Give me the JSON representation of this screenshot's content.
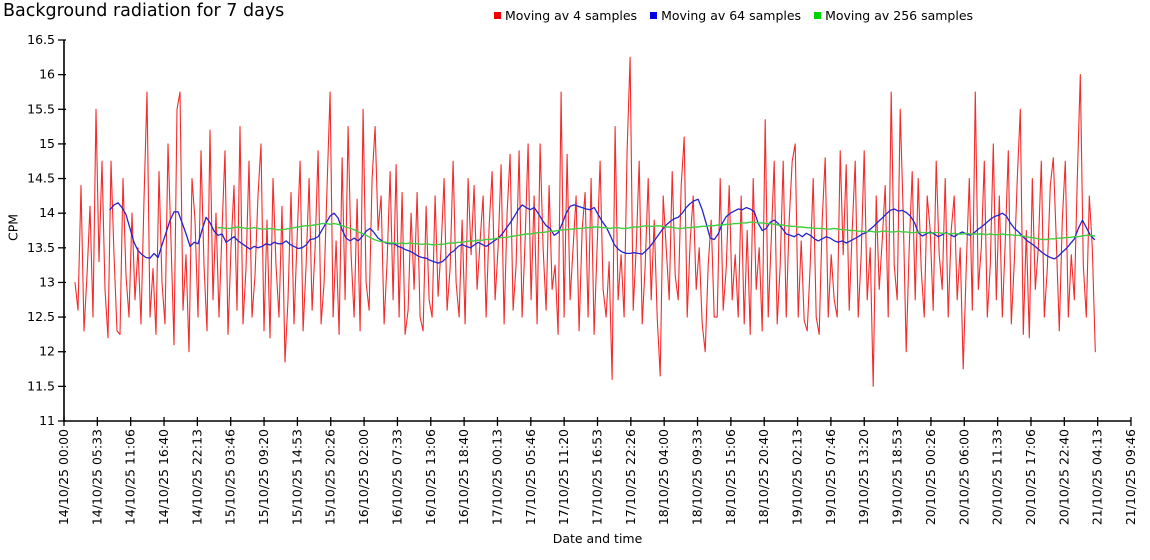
{
  "title": "Background radiation for 7 days",
  "chart_data": {
    "type": "line",
    "title": "Background radiation for 7 days",
    "xlabel": "Date and time",
    "ylabel": "CPM",
    "ylim": [
      11,
      16.5
    ],
    "y_tick_labels": [
      "11",
      "11.5",
      "12",
      "12.5",
      "13",
      "13.5",
      "14",
      "14.5",
      "15",
      "15.5",
      "16",
      "16.5"
    ],
    "x_hours_max": 177.78,
    "x_tick_step_hours": 5.5556,
    "x_tick_labels": [
      "14/10/25 00:00",
      "14/10/25 05:33",
      "14/10/25 11:06",
      "14/10/25 16:40",
      "14/10/25 22:13",
      "15/10/25 03:46",
      "15/10/25 09:20",
      "15/10/25 14:53",
      "15/10/25 20:26",
      "16/10/25 02:00",
      "16/10/25 07:33",
      "16/10/25 13:06",
      "16/10/25 18:40",
      "17/10/25 00:13",
      "17/10/25 05:46",
      "17/10/25 11:20",
      "17/10/25 16:53",
      "17/10/25 22:26",
      "18/10/25 04:00",
      "18/10/25 09:33",
      "18/10/25 15:06",
      "18/10/25 20:40",
      "19/10/25 02:13",
      "19/10/25 07:46",
      "19/10/25 13:20",
      "19/10/25 18:53",
      "20/10/25 00:26",
      "20/10/25 06:00",
      "20/10/25 11:33",
      "20/10/25 17:06",
      "20/10/25 22:40",
      "21/10/25 04:13",
      "21/10/25 09:46"
    ],
    "grid": false,
    "legend_position": "top-center",
    "series": [
      {
        "name": "Moving av 4 samples",
        "line_color": "#f52a2a",
        "marker_color": "#f40000",
        "line_width": 1.1,
        "x_start_hours": 1.83,
        "x_step_hours": 0.5,
        "values": [
          13.0,
          12.6,
          14.4,
          12.3,
          13.1,
          14.1,
          12.5,
          15.5,
          13.3,
          14.75,
          12.9,
          12.2,
          14.75,
          13.4,
          12.3,
          12.25,
          14.5,
          13.1,
          12.5,
          14.0,
          12.75,
          13.5,
          12.4,
          14.2,
          15.75,
          12.5,
          13.2,
          12.25,
          14.6,
          13.0,
          12.4,
          15.0,
          13.6,
          12.1,
          15.5,
          15.75,
          12.6,
          13.4,
          12.0,
          14.5,
          13.9,
          12.5,
          14.9,
          13.25,
          12.3,
          15.2,
          12.75,
          14.0,
          12.5,
          13.75,
          14.9,
          12.25,
          13.5,
          14.4,
          12.6,
          15.25,
          12.4,
          13.2,
          14.75,
          12.5,
          13.1,
          14.25,
          15.0,
          12.3,
          13.9,
          12.2,
          14.5,
          13.25,
          12.5,
          14.1,
          11.85,
          12.75,
          14.3,
          12.4,
          13.6,
          14.75,
          12.3,
          13.25,
          14.5,
          12.6,
          13.5,
          14.9,
          12.4,
          13.0,
          14.4,
          15.75,
          12.5,
          13.6,
          12.25,
          14.8,
          12.75,
          15.25,
          13.4,
          12.5,
          14.2,
          12.3,
          15.5,
          13.0,
          12.6,
          14.5,
          15.25,
          13.75,
          14.25,
          12.4,
          13.3,
          14.6,
          12.75,
          14.7,
          12.5,
          14.3,
          12.25,
          12.6,
          14.0,
          12.9,
          14.3,
          12.5,
          12.3,
          14.1,
          12.75,
          12.5,
          14.25,
          12.8,
          13.5,
          14.5,
          12.6,
          13.2,
          14.75,
          13.0,
          12.5,
          13.9,
          12.4,
          14.5,
          13.4,
          14.4,
          12.9,
          13.6,
          14.25,
          12.5,
          13.8,
          14.6,
          12.75,
          13.5,
          14.7,
          12.4,
          14.0,
          14.85,
          12.6,
          13.25,
          14.9,
          12.5,
          13.6,
          15.0,
          12.75,
          14.25,
          12.4,
          15.0,
          13.5,
          12.6,
          14.4,
          12.9,
          13.25,
          12.25,
          15.75,
          12.5,
          14.85,
          12.75,
          13.5,
          14.25,
          12.3,
          13.75,
          14.3,
          12.5,
          14.5,
          12.25,
          13.5,
          14.75,
          12.9,
          12.5,
          13.3,
          11.6,
          15.25,
          12.75,
          13.4,
          12.5,
          14.9,
          16.25,
          12.6,
          13.5,
          14.75,
          12.4,
          13.25,
          14.5,
          12.75,
          13.9,
          12.5,
          11.65,
          14.25,
          13.5,
          12.75,
          14.6,
          13.1,
          12.75,
          14.4,
          15.1,
          12.5,
          13.6,
          14.25,
          12.9,
          13.5,
          12.4,
          12.0,
          13.25,
          13.9,
          12.5,
          12.5,
          14.5,
          12.6,
          13.2,
          14.4,
          12.75,
          13.4,
          12.5,
          14.25,
          12.4,
          13.75,
          12.25,
          14.5,
          12.9,
          13.5,
          12.3,
          15.35,
          12.5,
          13.6,
          14.75,
          12.4,
          13.25,
          14.75,
          12.5,
          13.9,
          14.75,
          15.0,
          12.5,
          13.6,
          12.45,
          12.3,
          13.25,
          14.5,
          12.5,
          12.25,
          13.9,
          14.8,
          12.5,
          13.4,
          12.75,
          12.5,
          14.9,
          13.4,
          14.7,
          12.6,
          13.75,
          14.75,
          12.5,
          13.4,
          14.9,
          12.75,
          13.5,
          11.5,
          14.25,
          12.9,
          13.6,
          14.4,
          12.5,
          15.75,
          13.25,
          12.75,
          15.5,
          14.0,
          12.0,
          13.5,
          14.6,
          12.75,
          14.5,
          13.2,
          12.5,
          14.25,
          13.75,
          12.6,
          14.75,
          13.4,
          12.9,
          14.5,
          12.5,
          13.75,
          14.25,
          12.75,
          13.5,
          11.75,
          13.25,
          14.5,
          12.6,
          15.75,
          12.9,
          13.5,
          14.75,
          12.5,
          13.25,
          15.0,
          12.75,
          14.25,
          12.5,
          13.6,
          14.9,
          12.4,
          13.3,
          14.5,
          15.5,
          12.25,
          13.75,
          12.2,
          14.5,
          12.9,
          13.5,
          14.75,
          12.5,
          13.2,
          14.4,
          14.8,
          13.6,
          12.3,
          13.9,
          14.75,
          12.5,
          13.4,
          12.75,
          14.5,
          16.0,
          13.25,
          12.5,
          14.25,
          13.5,
          12.0
        ]
      },
      {
        "name": "Moving av 64 samples",
        "line_color": "#2424cf",
        "marker_color": "#0000e8",
        "line_width": 1.3,
        "x_start_hours": 7.67,
        "x_step_hours": 0.6667,
        "values": [
          14.05,
          14.12,
          14.15,
          14.08,
          13.98,
          13.78,
          13.58,
          13.46,
          13.4,
          13.36,
          13.35,
          13.42,
          13.36,
          13.55,
          13.72,
          13.9,
          14.02,
          14.02,
          13.86,
          13.7,
          13.52,
          13.58,
          13.56,
          13.76,
          13.94,
          13.86,
          13.74,
          13.68,
          13.7,
          13.58,
          13.62,
          13.66,
          13.6,
          13.56,
          13.52,
          13.48,
          13.52,
          13.5,
          13.52,
          13.56,
          13.54,
          13.58,
          13.56,
          13.56,
          13.6,
          13.55,
          13.52,
          13.49,
          13.5,
          13.54,
          13.62,
          13.63,
          13.66,
          13.76,
          13.86,
          13.96,
          14.0,
          13.93,
          13.76,
          13.64,
          13.6,
          13.64,
          13.6,
          13.66,
          13.74,
          13.78,
          13.72,
          13.64,
          13.6,
          13.57,
          13.56,
          13.56,
          13.52,
          13.5,
          13.47,
          13.45,
          13.42,
          13.38,
          13.36,
          13.35,
          13.32,
          13.3,
          13.28,
          13.3,
          13.35,
          13.42,
          13.46,
          13.52,
          13.55,
          13.52,
          13.5,
          13.54,
          13.58,
          13.55,
          13.52,
          13.56,
          13.6,
          13.64,
          13.7,
          13.78,
          13.86,
          13.95,
          14.05,
          14.12,
          14.08,
          14.05,
          14.08,
          14.0,
          13.9,
          13.82,
          13.78,
          13.68,
          13.72,
          13.85,
          14.0,
          14.1,
          14.12,
          14.1,
          14.08,
          14.06,
          14.05,
          14.08,
          13.98,
          13.88,
          13.8,
          13.68,
          13.55,
          13.48,
          13.44,
          13.42,
          13.42,
          13.43,
          13.42,
          13.41,
          13.46,
          13.52,
          13.6,
          13.68,
          13.76,
          13.83,
          13.88,
          13.92,
          13.94,
          14.0,
          14.08,
          14.14,
          14.18,
          14.2,
          14.05,
          13.85,
          13.64,
          13.62,
          13.7,
          13.85,
          13.95,
          14.0,
          14.03,
          14.06,
          14.05,
          14.08,
          14.06,
          14.02,
          13.85,
          13.75,
          13.78,
          13.87,
          13.9,
          13.85,
          13.78,
          13.7,
          13.68,
          13.66,
          13.7,
          13.66,
          13.71,
          13.68,
          13.63,
          13.6,
          13.63,
          13.66,
          13.64,
          13.6,
          13.58,
          13.6,
          13.57,
          13.6,
          13.63,
          13.66,
          13.7,
          13.72,
          13.77,
          13.82,
          13.88,
          13.93,
          13.99,
          14.04,
          14.06,
          14.03,
          14.04,
          14.01,
          13.96,
          13.87,
          13.72,
          13.67,
          13.7,
          13.73,
          13.7,
          13.66,
          13.69,
          13.72,
          13.69,
          13.66,
          13.7,
          13.73,
          13.7,
          13.68,
          13.72,
          13.77,
          13.81,
          13.86,
          13.91,
          13.95,
          13.97,
          14.0,
          13.96,
          13.86,
          13.78,
          13.73,
          13.67,
          13.61,
          13.57,
          13.53,
          13.48,
          13.43,
          13.39,
          13.36,
          13.34,
          13.38,
          13.44,
          13.49,
          13.56,
          13.63,
          13.78,
          13.9,
          13.79,
          13.68,
          13.62
        ]
      },
      {
        "name": "Moving av 256 samples",
        "line_color": "#3fce3f",
        "marker_color": "#00d400",
        "line_width": 1.4,
        "x_start_hours": 25.67,
        "x_step_hours": 0.6667,
        "values": [
          13.79,
          13.79,
          13.78,
          13.78,
          13.79,
          13.8,
          13.79,
          13.78,
          13.78,
          13.79,
          13.78,
          13.77,
          13.77,
          13.78,
          13.77,
          13.76,
          13.76,
          13.77,
          13.78,
          13.79,
          13.8,
          13.81,
          13.82,
          13.82,
          13.83,
          13.84,
          13.85,
          13.85,
          13.84,
          13.85,
          13.84,
          13.82,
          13.8,
          13.78,
          13.76,
          13.73,
          13.71,
          13.68,
          13.65,
          13.62,
          13.6,
          13.59,
          13.58,
          13.57,
          13.57,
          13.56,
          13.57,
          13.56,
          13.57,
          13.56,
          13.56,
          13.55,
          13.56,
          13.55,
          13.54,
          13.55,
          13.55,
          13.56,
          13.57,
          13.57,
          13.58,
          13.58,
          13.59,
          13.6,
          13.6,
          13.61,
          13.61,
          13.62,
          13.62,
          13.63,
          13.64,
          13.65,
          13.65,
          13.66,
          13.67,
          13.68,
          13.69,
          13.7,
          13.7,
          13.71,
          13.72,
          13.72,
          13.73,
          13.74,
          13.74,
          13.75,
          13.76,
          13.76,
          13.77,
          13.77,
          13.78,
          13.78,
          13.79,
          13.79,
          13.8,
          13.8,
          13.79,
          13.79,
          13.78,
          13.79,
          13.79,
          13.78,
          13.78,
          13.79,
          13.8,
          13.8,
          13.81,
          13.82,
          13.81,
          13.81,
          13.82,
          13.81,
          13.8,
          13.8,
          13.79,
          13.78,
          13.78,
          13.79,
          13.79,
          13.8,
          13.8,
          13.81,
          13.81,
          13.82,
          13.82,
          13.83,
          13.83,
          13.84,
          13.84,
          13.85,
          13.85,
          13.86,
          13.86,
          13.87,
          13.87,
          13.86,
          13.86,
          13.85,
          13.85,
          13.84,
          13.83,
          13.83,
          13.82,
          13.81,
          13.81,
          13.8,
          13.8,
          13.79,
          13.79,
          13.78,
          13.78,
          13.78,
          13.77,
          13.77,
          13.78,
          13.77,
          13.76,
          13.76,
          13.75,
          13.75,
          13.74,
          13.74,
          13.73,
          13.74,
          13.73,
          13.73,
          13.74,
          13.74,
          13.73,
          13.73,
          13.74,
          13.73,
          13.73,
          13.72,
          13.72,
          13.73,
          13.72,
          13.72,
          13.71,
          13.72,
          13.72,
          13.71,
          13.71,
          13.7,
          13.71,
          13.7,
          13.7,
          13.71,
          13.7,
          13.7,
          13.7,
          13.7,
          13.69,
          13.7,
          13.69,
          13.69,
          13.7,
          13.69,
          13.69,
          13.68,
          13.68,
          13.67,
          13.66,
          13.65,
          13.64,
          13.63,
          13.62,
          13.62,
          13.63,
          13.63,
          13.64,
          13.64,
          13.65,
          13.65,
          13.66,
          13.66,
          13.67,
          13.68,
          13.68,
          13.67
        ]
      }
    ]
  }
}
